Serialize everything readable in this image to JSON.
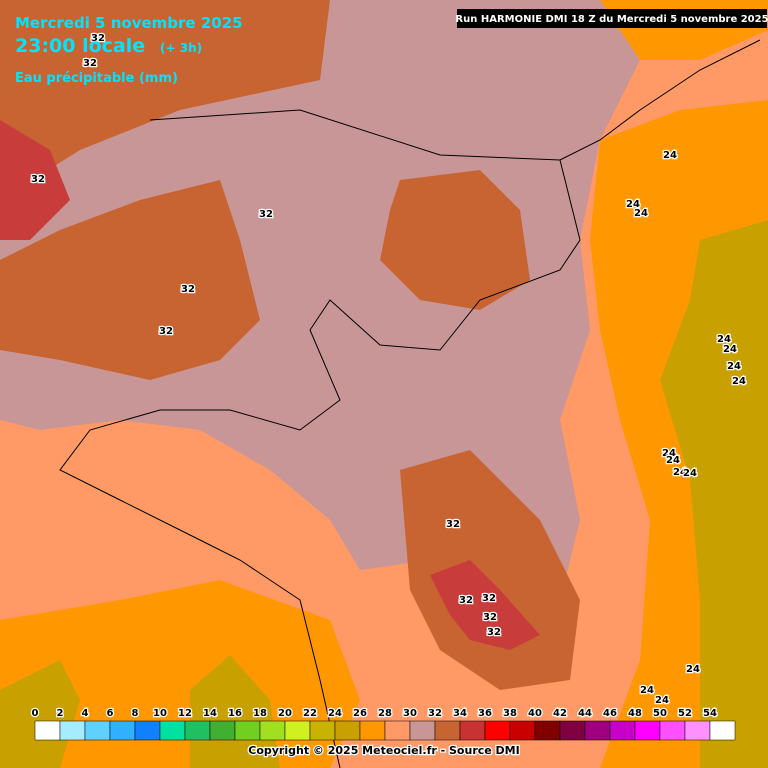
{
  "header": {
    "date": "Mercredi 5 novembre 2025",
    "time": "23:00 locale",
    "offset": "(+ 3h)",
    "parameter": "Eau précipitable (mm)",
    "run": "Run HARMONIE DMI 18 Z du Mercredi 5 novembre 2025"
  },
  "contour_labels": [
    "32",
    "32",
    "32",
    "32",
    "32",
    "32",
    "32",
    "32",
    "32",
    "32",
    "32",
    "24",
    "24",
    "24",
    "24",
    "24",
    "24",
    "24",
    "24",
    "24",
    "24",
    "24",
    "24",
    "24",
    "24"
  ],
  "legend": {
    "values": [
      0,
      2,
      4,
      6,
      8,
      10,
      12,
      14,
      16,
      18,
      20,
      22,
      24,
      26,
      28,
      30,
      32,
      34,
      36,
      38,
      40,
      42,
      44,
      46,
      48,
      50,
      52,
      54
    ],
    "colors": [
      "#ffffff",
      "#a6ecff",
      "#5fd0ff",
      "#30b0ff",
      "#1080ff",
      "#00e0a0",
      "#20c060",
      "#40b030",
      "#70d020",
      "#a0e020",
      "#d0f020",
      "#c8b400",
      "#c8a000",
      "#ff9800",
      "#ff9966",
      "#c89696",
      "#c86432",
      "#c83232",
      "#ff0000",
      "#c80000",
      "#800000",
      "#800040",
      "#a00080",
      "#c800c8",
      "#ff00ff",
      "#ff50ff",
      "#ff90ff",
      "#ffffff"
    ]
  },
  "footer": {
    "copyright": "Copyright © 2025 Meteociel.fr - Source DMI"
  }
}
